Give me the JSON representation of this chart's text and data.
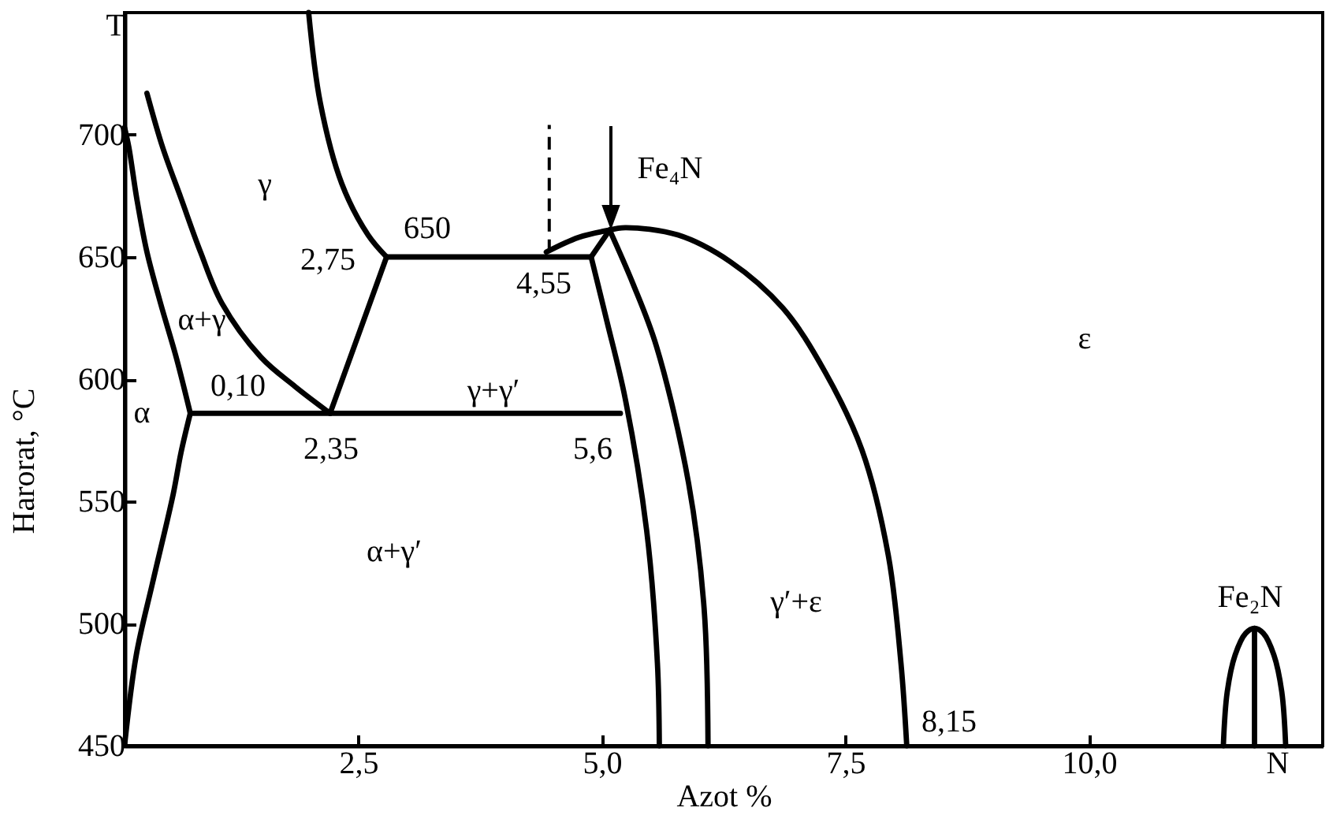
{
  "chart_data": {
    "type": "line",
    "xlabel": "Azot %",
    "ylabel": "Harorat, °C",
    "xlim": [
      0.1,
      12.4
    ],
    "ylim": [
      450,
      750
    ],
    "xticks": [
      {
        "value": 2.5,
        "label": "2,5"
      },
      {
        "value": 5,
        "label": "5,0"
      },
      {
        "value": 7.5,
        "label": "7,5"
      },
      {
        "value": 10,
        "label": "10,0"
      },
      {
        "value": 11.93,
        "label": "N"
      }
    ],
    "yticks": [
      450,
      500,
      550,
      600,
      650,
      700,
      {
        "value": 745,
        "label": "T"
      }
    ],
    "grid": false,
    "series": [
      {
        "color": "#000000",
        "x": [
          0.1,
          0.144,
          0.225,
          0.33,
          0.47,
          0.63,
          0.775
        ],
        "values": [
          703,
          695,
          674,
          652,
          631,
          609,
          586
        ]
      },
      {
        "color": "#000000",
        "x": [
          0.775,
          0.68,
          0.6,
          0.39,
          0.22,
          0.1
        ],
        "values": [
          586,
          570,
          553,
          517,
          487,
          450
        ]
      },
      {
        "color": "#000000",
        "x": [
          0.33,
          0.49,
          0.68,
          0.88,
          1.1,
          1.5,
          1.85,
          2.21
        ],
        "values": [
          717,
          695,
          674,
          652,
          631,
          609,
          597,
          586
        ]
      },
      {
        "color": "#000000",
        "x": [
          2.21,
          2.79
        ],
        "values": [
          586,
          650
        ]
      },
      {
        "color": "#000000",
        "x": [
          1.99,
          2.11,
          2.33,
          2.6,
          2.79
        ],
        "values": [
          750,
          713,
          680,
          659,
          650
        ]
      },
      {
        "color": "#000000",
        "x": [
          2.79,
          4.89
        ],
        "values": [
          650,
          650
        ]
      },
      {
        "color": "#000000",
        "x": [
          4.43,
          4.76,
          5.08
        ],
        "values": [
          652,
          658,
          661
        ]
      },
      {
        "color": "#000000",
        "x": [
          4.89,
          5.08
        ],
        "values": [
          650,
          661
        ]
      },
      {
        "color": "#000000",
        "x": [
          4.46,
          4.46
        ],
        "values": [
          652,
          704
        ],
        "line_style": "dashed"
      },
      {
        "color": "#000000",
        "x": [
          0.775,
          5.19
        ],
        "values": [
          586,
          586
        ]
      },
      {
        "color": "#000000",
        "x": [
          4.89,
          5.05,
          5.24,
          5.46,
          5.57,
          5.59
        ],
        "values": [
          650,
          624,
          592,
          538,
          484,
          450
        ]
      },
      {
        "color": "#000000",
        "x": [
          5.08,
          5.32,
          5.56,
          5.89,
          6.05,
          6.09
        ],
        "values": [
          661,
          639,
          613.5,
          557.5,
          506,
          450
        ]
      },
      {
        "color": "#000000",
        "x": [
          5.08,
          5.24,
          5.78,
          6.32,
          6.86,
          7.29,
          7.67,
          7.94,
          8.07,
          8.13
        ],
        "values": [
          661,
          662,
          659,
          648,
          629,
          603,
          571,
          528,
          484,
          450
        ]
      },
      {
        "color": "#000000",
        "x": [
          11.38,
          11.42,
          11.5,
          11.61,
          11.7,
          11.79,
          11.9,
          11.98,
          12.02
        ],
        "values": [
          450,
          472,
          487,
          496,
          498,
          496,
          487,
          472,
          450
        ]
      },
      {
        "color": "#000000",
        "x": [
          11.7,
          11.7
        ],
        "values": [
          450,
          498
        ]
      }
    ],
    "annotations": [
      "γ",
      "α+γ",
      "0,10",
      "α",
      "2,75",
      "650",
      "2,35",
      "4,55",
      "γ+γ′",
      "5,6",
      "α+γ′",
      "γ′+ε",
      "8,15",
      "ε",
      "Fe₂N",
      "Fe₄N"
    ]
  }
}
